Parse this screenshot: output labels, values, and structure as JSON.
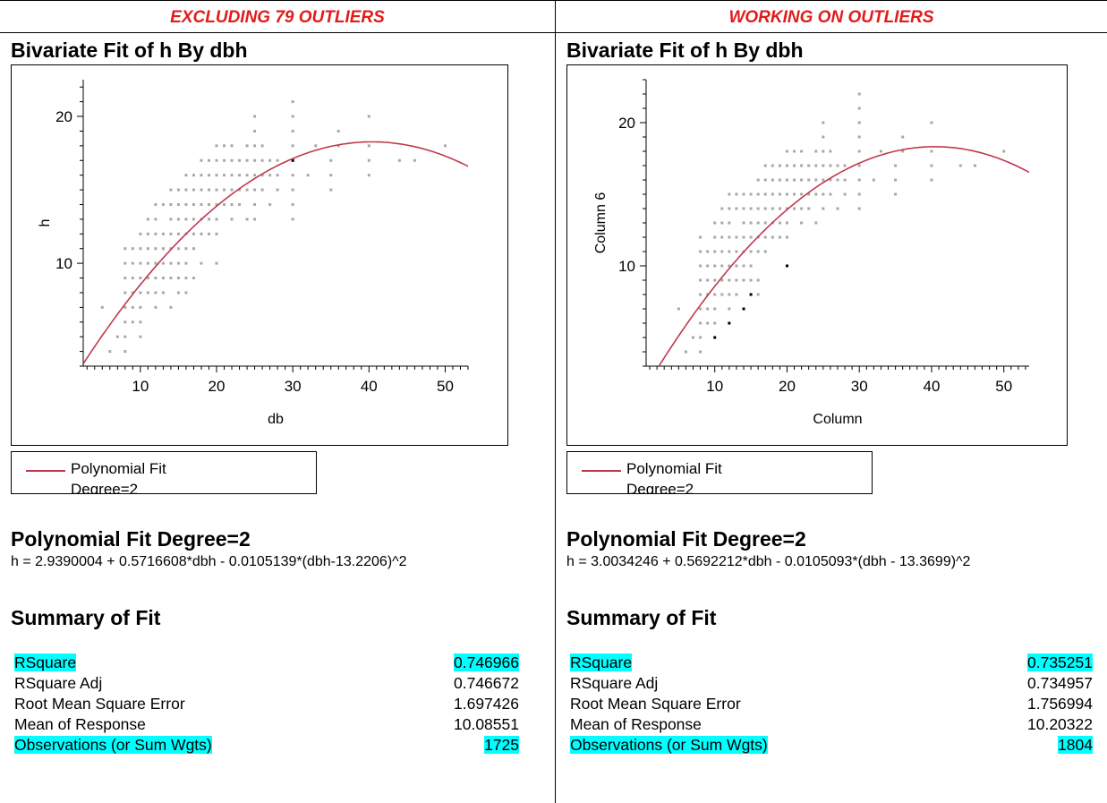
{
  "panels": [
    {
      "header": "EXCLUDING 79 OUTLIERS",
      "section_title": "Bivariate Fit of h By dbh",
      "legend": {
        "label": "Polynomial Fit",
        "label2": "Degree=2"
      },
      "fit_title": "Polynomial Fit Degree=2",
      "equation": "h = 2.9390004 + 0.5716608*dbh - 0.0105139*(dbh-13.2206)^2",
      "summary_title": "Summary of Fit",
      "summary": [
        {
          "label": "RSquare",
          "value": "0.746966",
          "highlight": true
        },
        {
          "label": "RSquare Adj",
          "value": "0.746672",
          "highlight": false
        },
        {
          "label": "Root Mean Square Error",
          "value": "1.697426",
          "highlight": false
        },
        {
          "label": "Mean of Response",
          "value": "10.08551",
          "highlight": false
        },
        {
          "label": "Observations (or Sum Wgts)",
          "value": "1725",
          "highlight": true
        }
      ]
    },
    {
      "header": "WORKING ON OUTLIERS",
      "section_title": "Bivariate Fit of h By dbh",
      "legend": {
        "label": "Polynomial Fit",
        "label2": "Degree=2"
      },
      "fit_title": "Polynomial Fit Degree=2",
      "equation": "h = 3.0034246 + 0.5692212*dbh - 0.0105093*(dbh - 13.3699)^2",
      "summary_title": "Summary of Fit",
      "summary": [
        {
          "label": "RSquare",
          "value": "0.735251",
          "highlight": true
        },
        {
          "label": "RSquare Adj",
          "value": "0.734957",
          "highlight": false
        },
        {
          "label": "Root Mean Square Error",
          "value": "1.756994",
          "highlight": false
        },
        {
          "label": "Mean of Response",
          "value": "10.20322",
          "highlight": false
        },
        {
          "label": "Observations (or Sum Wgts)",
          "value": "1804",
          "highlight": true
        }
      ]
    }
  ],
  "chart_data": [
    {
      "type": "scatter",
      "xlabel": "db",
      "ylabel": "h",
      "xlim": [
        2.5,
        53
      ],
      "ylim": [
        3,
        22.5
      ],
      "xticks": [
        10,
        20,
        30,
        40,
        50
      ],
      "yticks": [
        10,
        20
      ],
      "fit": {
        "intercept": 2.9390004,
        "linear": 0.5716608,
        "quad": -0.0105139,
        "center": 13.2206,
        "color": "#c0394b"
      },
      "point_color": "#a8a8a8",
      "points": [
        [
          5,
          7
        ],
        [
          6,
          4
        ],
        [
          7,
          5
        ],
        [
          8,
          4
        ],
        [
          8,
          5
        ],
        [
          8,
          6
        ],
        [
          8,
          7
        ],
        [
          8,
          8
        ],
        [
          8,
          9
        ],
        [
          8,
          10
        ],
        [
          8,
          11
        ],
        [
          9,
          6
        ],
        [
          9,
          7
        ],
        [
          9,
          8
        ],
        [
          9,
          9
        ],
        [
          9,
          10
        ],
        [
          9,
          11
        ],
        [
          10,
          5
        ],
        [
          10,
          6
        ],
        [
          10,
          7
        ],
        [
          10,
          8
        ],
        [
          10,
          9
        ],
        [
          10,
          10
        ],
        [
          10,
          11
        ],
        [
          10,
          12
        ],
        [
          11,
          8
        ],
        [
          11,
          9
        ],
        [
          11,
          10
        ],
        [
          11,
          11
        ],
        [
          11,
          12
        ],
        [
          11,
          13
        ],
        [
          12,
          7
        ],
        [
          12,
          8
        ],
        [
          12,
          9
        ],
        [
          12,
          10
        ],
        [
          12,
          11
        ],
        [
          12,
          12
        ],
        [
          12,
          13
        ],
        [
          12,
          14
        ],
        [
          13,
          8
        ],
        [
          13,
          9
        ],
        [
          13,
          10
        ],
        [
          13,
          11
        ],
        [
          13,
          12
        ],
        [
          13,
          14
        ],
        [
          14,
          7
        ],
        [
          14,
          9
        ],
        [
          14,
          10
        ],
        [
          14,
          11
        ],
        [
          14,
          12
        ],
        [
          14,
          13
        ],
        [
          14,
          14
        ],
        [
          14,
          15
        ],
        [
          15,
          8
        ],
        [
          15,
          9
        ],
        [
          15,
          10
        ],
        [
          15,
          11
        ],
        [
          15,
          12
        ],
        [
          15,
          13
        ],
        [
          15,
          14
        ],
        [
          15,
          15
        ],
        [
          16,
          8
        ],
        [
          16,
          9
        ],
        [
          16,
          10
        ],
        [
          16,
          11
        ],
        [
          16,
          12
        ],
        [
          16,
          13
        ],
        [
          16,
          14
        ],
        [
          16,
          15
        ],
        [
          16,
          16
        ],
        [
          17,
          9
        ],
        [
          17,
          11
        ],
        [
          17,
          12
        ],
        [
          17,
          13
        ],
        [
          17,
          14
        ],
        [
          17,
          15
        ],
        [
          17,
          16
        ],
        [
          18,
          10
        ],
        [
          18,
          12
        ],
        [
          18,
          13
        ],
        [
          18,
          14
        ],
        [
          18,
          15
        ],
        [
          18,
          16
        ],
        [
          18,
          17
        ],
        [
          19,
          12
        ],
        [
          19,
          13
        ],
        [
          19,
          14
        ],
        [
          19,
          15
        ],
        [
          19,
          16
        ],
        [
          19,
          17
        ],
        [
          20,
          10
        ],
        [
          20,
          12
        ],
        [
          20,
          13
        ],
        [
          20,
          14
        ],
        [
          20,
          15
        ],
        [
          20,
          16
        ],
        [
          20,
          17
        ],
        [
          20,
          18
        ],
        [
          21,
          14
        ],
        [
          21,
          15
        ],
        [
          21,
          16
        ],
        [
          21,
          17
        ],
        [
          21,
          18
        ],
        [
          22,
          13
        ],
        [
          22,
          14
        ],
        [
          22,
          15
        ],
        [
          22,
          16
        ],
        [
          22,
          17
        ],
        [
          22,
          18
        ],
        [
          23,
          14
        ],
        [
          23,
          15
        ],
        [
          23,
          16
        ],
        [
          23,
          17
        ],
        [
          24,
          13
        ],
        [
          24,
          15
        ],
        [
          24,
          16
        ],
        [
          24,
          17
        ],
        [
          24,
          18
        ],
        [
          25,
          13
        ],
        [
          25,
          14
        ],
        [
          25,
          15
        ],
        [
          25,
          16
        ],
        [
          25,
          17
        ],
        [
          25,
          18
        ],
        [
          25,
          19
        ],
        [
          25,
          20
        ],
        [
          26,
          15
        ],
        [
          26,
          16
        ],
        [
          26,
          17
        ],
        [
          26,
          18
        ],
        [
          27,
          14
        ],
        [
          27,
          16
        ],
        [
          27,
          17
        ],
        [
          28,
          15
        ],
        [
          28,
          16
        ],
        [
          28,
          17
        ],
        [
          30,
          13
        ],
        [
          30,
          14
        ],
        [
          30,
          15
        ],
        [
          30,
          16
        ],
        [
          30,
          17
        ],
        [
          30,
          18
        ],
        [
          30,
          19
        ],
        [
          30,
          20
        ],
        [
          30,
          21
        ],
        [
          32,
          16
        ],
        [
          33,
          18
        ],
        [
          35,
          15
        ],
        [
          35,
          16
        ],
        [
          35,
          17
        ],
        [
          36,
          18
        ],
        [
          36,
          19
        ],
        [
          40,
          16
        ],
        [
          40,
          17
        ],
        [
          40,
          18
        ],
        [
          40,
          20
        ],
        [
          44,
          17
        ],
        [
          46,
          17
        ],
        [
          50,
          18
        ]
      ],
      "dark_points": [
        [
          30,
          17
        ]
      ]
    },
    {
      "type": "scatter",
      "xlabel": "Column",
      "ylabel": "Column 6",
      "xlim": [
        0.5,
        53.5
      ],
      "ylim": [
        3,
        23
      ],
      "xticks": [
        10,
        20,
        30,
        40,
        50
      ],
      "yticks": [
        10,
        20
      ],
      "fit": {
        "intercept": 3.0034246,
        "linear": 0.5692212,
        "quad": -0.0105093,
        "center": 13.3699,
        "color": "#c0394b"
      },
      "point_color": "#a8a8a8",
      "points": [
        [
          5,
          7
        ],
        [
          6,
          4
        ],
        [
          7,
          5
        ],
        [
          8,
          4
        ],
        [
          8,
          5
        ],
        [
          8,
          6
        ],
        [
          8,
          7
        ],
        [
          8,
          8
        ],
        [
          8,
          9
        ],
        [
          8,
          10
        ],
        [
          8,
          11
        ],
        [
          8,
          12
        ],
        [
          9,
          6
        ],
        [
          9,
          7
        ],
        [
          9,
          8
        ],
        [
          9,
          9
        ],
        [
          9,
          10
        ],
        [
          9,
          11
        ],
        [
          10,
          6
        ],
        [
          10,
          7
        ],
        [
          10,
          8
        ],
        [
          10,
          9
        ],
        [
          10,
          10
        ],
        [
          10,
          11
        ],
        [
          10,
          12
        ],
        [
          10,
          13
        ],
        [
          11,
          8
        ],
        [
          11,
          9
        ],
        [
          11,
          10
        ],
        [
          11,
          11
        ],
        [
          11,
          12
        ],
        [
          11,
          13
        ],
        [
          11,
          14
        ],
        [
          12,
          7
        ],
        [
          12,
          8
        ],
        [
          12,
          9
        ],
        [
          12,
          10
        ],
        [
          12,
          11
        ],
        [
          12,
          12
        ],
        [
          12,
          13
        ],
        [
          12,
          14
        ],
        [
          12,
          15
        ],
        [
          13,
          8
        ],
        [
          13,
          9
        ],
        [
          13,
          10
        ],
        [
          13,
          11
        ],
        [
          13,
          12
        ],
        [
          13,
          14
        ],
        [
          13,
          15
        ],
        [
          14,
          9
        ],
        [
          14,
          10
        ],
        [
          14,
          11
        ],
        [
          14,
          12
        ],
        [
          14,
          13
        ],
        [
          14,
          14
        ],
        [
          14,
          15
        ],
        [
          15,
          8
        ],
        [
          15,
          9
        ],
        [
          15,
          10
        ],
        [
          15,
          11
        ],
        [
          15,
          12
        ],
        [
          15,
          13
        ],
        [
          15,
          14
        ],
        [
          15,
          15
        ],
        [
          16,
          8
        ],
        [
          16,
          9
        ],
        [
          16,
          11
        ],
        [
          16,
          12
        ],
        [
          16,
          13
        ],
        [
          16,
          14
        ],
        [
          16,
          15
        ],
        [
          16,
          16
        ],
        [
          17,
          11
        ],
        [
          17,
          12
        ],
        [
          17,
          13
        ],
        [
          17,
          14
        ],
        [
          17,
          15
        ],
        [
          17,
          16
        ],
        [
          17,
          17
        ],
        [
          18,
          12
        ],
        [
          18,
          13
        ],
        [
          18,
          14
        ],
        [
          18,
          15
        ],
        [
          18,
          16
        ],
        [
          18,
          17
        ],
        [
          19,
          12
        ],
        [
          19,
          13
        ],
        [
          19,
          14
        ],
        [
          19,
          15
        ],
        [
          19,
          16
        ],
        [
          19,
          17
        ],
        [
          20,
          12
        ],
        [
          20,
          13
        ],
        [
          20,
          14
        ],
        [
          20,
          15
        ],
        [
          20,
          16
        ],
        [
          20,
          17
        ],
        [
          20,
          18
        ],
        [
          21,
          14
        ],
        [
          21,
          15
        ],
        [
          21,
          16
        ],
        [
          21,
          17
        ],
        [
          21,
          18
        ],
        [
          22,
          13
        ],
        [
          22,
          14
        ],
        [
          22,
          15
        ],
        [
          22,
          16
        ],
        [
          22,
          17
        ],
        [
          22,
          18
        ],
        [
          23,
          14
        ],
        [
          23,
          15
        ],
        [
          23,
          16
        ],
        [
          23,
          17
        ],
        [
          24,
          13
        ],
        [
          24,
          15
        ],
        [
          24,
          16
        ],
        [
          24,
          17
        ],
        [
          24,
          18
        ],
        [
          25,
          14
        ],
        [
          25,
          15
        ],
        [
          25,
          16
        ],
        [
          25,
          17
        ],
        [
          25,
          18
        ],
        [
          25,
          19
        ],
        [
          25,
          20
        ],
        [
          26,
          15
        ],
        [
          26,
          16
        ],
        [
          26,
          17
        ],
        [
          26,
          18
        ],
        [
          27,
          14
        ],
        [
          27,
          16
        ],
        [
          27,
          17
        ],
        [
          28,
          15
        ],
        [
          28,
          16
        ],
        [
          28,
          17
        ],
        [
          30,
          14
        ],
        [
          30,
          15
        ],
        [
          30,
          16
        ],
        [
          30,
          17
        ],
        [
          30,
          18
        ],
        [
          30,
          19
        ],
        [
          30,
          20
        ],
        [
          30,
          21
        ],
        [
          30,
          22
        ],
        [
          32,
          16
        ],
        [
          33,
          18
        ],
        [
          35,
          15
        ],
        [
          35,
          16
        ],
        [
          35,
          17
        ],
        [
          36,
          18
        ],
        [
          36,
          19
        ],
        [
          40,
          16
        ],
        [
          40,
          17
        ],
        [
          40,
          18
        ],
        [
          40,
          20
        ],
        [
          44,
          17
        ],
        [
          46,
          17
        ],
        [
          50,
          18
        ]
      ],
      "dark_points": [
        [
          10,
          5
        ],
        [
          12,
          6
        ],
        [
          14,
          7
        ],
        [
          15,
          8
        ],
        [
          20,
          10
        ]
      ]
    }
  ]
}
